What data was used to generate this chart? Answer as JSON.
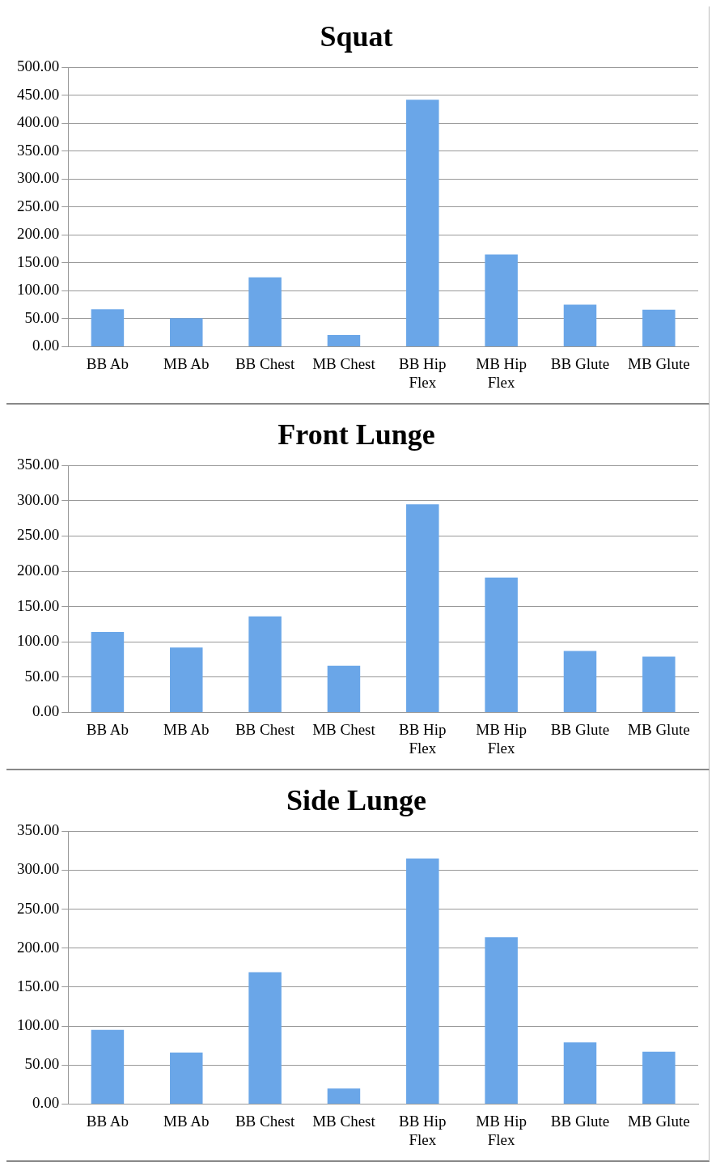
{
  "chart_data": [
    {
      "type": "bar",
      "title": "Squat",
      "categories": [
        "BB Ab",
        "MB Ab",
        "BB Chest",
        "MB Chest",
        "BB Hip Flex",
        "MB Hip Flex",
        "BB Glute",
        "MB Glute"
      ],
      "values": [
        67,
        51,
        124,
        21,
        442,
        165,
        75,
        66
      ],
      "color": "#6aa6e8",
      "ylim": [
        0,
        500
      ],
      "yticks": [
        {
          "value": 0,
          "label": "0.00"
        },
        {
          "value": 50,
          "label": "50.00"
        },
        {
          "value": 100,
          "label": "100.00"
        },
        {
          "value": 150,
          "label": "150.00"
        },
        {
          "value": 200,
          "label": "200.00"
        },
        {
          "value": 250,
          "label": "250.00"
        },
        {
          "value": 300,
          "label": "300.00"
        },
        {
          "value": 350,
          "label": "350.00"
        },
        {
          "value": 400,
          "label": "400.00"
        },
        {
          "value": 450,
          "label": "450.00"
        },
        {
          "value": 500,
          "label": "500.00"
        }
      ],
      "grid": "y"
    },
    {
      "type": "bar",
      "title": "Front Lunge",
      "categories": [
        "BB Ab",
        "MB Ab",
        "BB Chest",
        "MB Chest",
        "BB Hip Flex",
        "MB Hip Flex",
        "BB Glute",
        "MB Glute"
      ],
      "values": [
        114,
        92,
        136,
        66,
        295,
        191,
        87,
        79
      ],
      "color": "#6aa6e8",
      "ylim": [
        0,
        350
      ],
      "yticks": [
        {
          "value": 0,
          "label": "0.00"
        },
        {
          "value": 50,
          "label": "50.00"
        },
        {
          "value": 100,
          "label": "100.00"
        },
        {
          "value": 150,
          "label": "150.00"
        },
        {
          "value": 200,
          "label": "200.00"
        },
        {
          "value": 250,
          "label": "250.00"
        },
        {
          "value": 300,
          "label": "300.00"
        },
        {
          "value": 350,
          "label": "350.00"
        }
      ],
      "grid": "y"
    },
    {
      "type": "bar",
      "title": "Side Lunge",
      "categories": [
        "BB Ab",
        "MB Ab",
        "BB Chest",
        "MB Chest",
        "BB Hip Flex",
        "MB Hip Flex",
        "BB Glute",
        "MB Glute"
      ],
      "values": [
        95,
        66,
        169,
        20,
        315,
        214,
        79,
        67
      ],
      "color": "#6aa6e8",
      "ylim": [
        0,
        350
      ],
      "yticks": [
        {
          "value": 0,
          "label": "0.00"
        },
        {
          "value": 50,
          "label": "50.00"
        },
        {
          "value": 100,
          "label": "100.00"
        },
        {
          "value": 150,
          "label": "150.00"
        },
        {
          "value": 200,
          "label": "200.00"
        },
        {
          "value": 250,
          "label": "250.00"
        },
        {
          "value": 300,
          "label": "300.00"
        },
        {
          "value": 350,
          "label": "350.00"
        }
      ],
      "grid": "y"
    }
  ]
}
